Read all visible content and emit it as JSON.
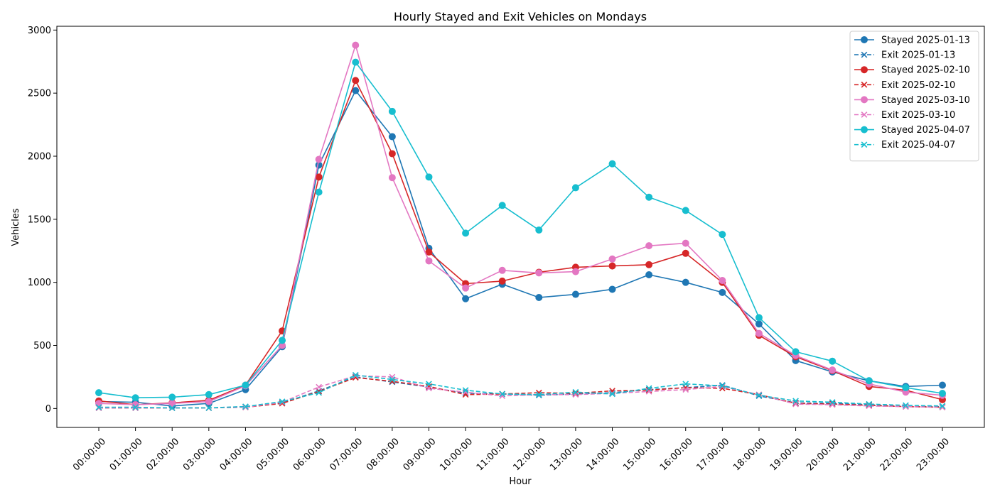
{
  "chart_data": {
    "type": "line",
    "title": "Hourly Stayed and Exit Vehicles on Mondays",
    "xlabel": "Hour",
    "ylabel": "Vehicles",
    "ylim": [
      -150,
      3030
    ],
    "yticks": [
      0,
      500,
      1000,
      1500,
      2000,
      2500,
      3000
    ],
    "grid": false,
    "legend_position": "top-right",
    "x": [
      "00:00:00",
      "01:00:00",
      "02:00:00",
      "03:00:00",
      "04:00:00",
      "05:00:00",
      "06:00:00",
      "07:00:00",
      "08:00:00",
      "09:00:00",
      "10:00:00",
      "11:00:00",
      "12:00:00",
      "13:00:00",
      "14:00:00",
      "15:00:00",
      "16:00:00",
      "17:00:00",
      "18:00:00",
      "19:00:00",
      "20:00:00",
      "21:00:00",
      "22:00:00",
      "23:00:00"
    ],
    "series": [
      {
        "name": "Stayed 2025-01-13",
        "color": "#1f77b4",
        "style": "solid",
        "marker": "circle",
        "values": [
          55,
          50,
          20,
          40,
          150,
          490,
          1930,
          2520,
          2155,
          1270,
          870,
          985,
          880,
          905,
          945,
          1060,
          1000,
          920,
          670,
          380,
          290,
          220,
          175,
          185
        ]
      },
      {
        "name": "Exit 2025-01-13",
        "color": "#1f77b4",
        "style": "dashed",
        "marker": "x",
        "values": [
          5,
          5,
          5,
          5,
          15,
          45,
          140,
          250,
          210,
          170,
          120,
          115,
          105,
          115,
          125,
          150,
          165,
          185,
          100,
          45,
          40,
          30,
          15,
          15
        ]
      },
      {
        "name": "Stayed 2025-02-10",
        "color": "#d62728",
        "style": "solid",
        "marker": "circle",
        "values": [
          60,
          30,
          45,
          65,
          185,
          615,
          1835,
          2600,
          2020,
          1240,
          990,
          1010,
          1080,
          1120,
          1130,
          1140,
          1230,
          1000,
          580,
          410,
          300,
          175,
          145,
          70
        ]
      },
      {
        "name": "Exit 2025-02-10",
        "color": "#d62728",
        "style": "dashed",
        "marker": "x",
        "values": [
          5,
          5,
          5,
          5,
          10,
          40,
          135,
          245,
          215,
          175,
          110,
          115,
          125,
          120,
          140,
          145,
          165,
          160,
          110,
          40,
          35,
          25,
          15,
          10
        ]
      },
      {
        "name": "Stayed 2025-03-10",
        "color": "#e377c2",
        "style": "solid",
        "marker": "circle",
        "values": [
          40,
          30,
          40,
          55,
          180,
          500,
          1975,
          2880,
          1830,
          1170,
          955,
          1095,
          1075,
          1085,
          1185,
          1290,
          1310,
          1015,
          595,
          420,
          305,
          195,
          130,
          105
        ]
      },
      {
        "name": "Exit 2025-03-10",
        "color": "#e377c2",
        "style": "dashed",
        "marker": "x",
        "values": [
          5,
          5,
          5,
          5,
          10,
          50,
          170,
          260,
          250,
          160,
          130,
          100,
          110,
          110,
          120,
          135,
          150,
          175,
          110,
          35,
          30,
          20,
          15,
          10
        ]
      },
      {
        "name": "Stayed 2025-04-07",
        "color": "#17becf",
        "style": "solid",
        "marker": "circle",
        "values": [
          125,
          85,
          90,
          110,
          185,
          540,
          1715,
          2745,
          2355,
          1835,
          1390,
          1610,
          1415,
          1750,
          1940,
          1675,
          1570,
          1380,
          720,
          450,
          375,
          220,
          165,
          120
        ]
      },
      {
        "name": "Exit 2025-04-07",
        "color": "#17becf",
        "style": "dashed",
        "marker": "x",
        "values": [
          10,
          10,
          5,
          5,
          15,
          55,
          125,
          265,
          230,
          195,
          145,
          115,
          110,
          130,
          115,
          160,
          195,
          180,
          105,
          60,
          50,
          35,
          25,
          20
        ]
      }
    ]
  }
}
